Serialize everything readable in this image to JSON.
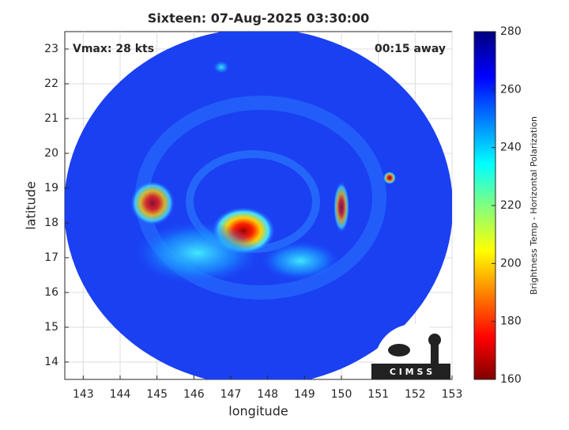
{
  "chart_data": {
    "type": "heatmap",
    "title": "Sixteen: 07-Aug-2025 03:30:00",
    "x_label": "longitude",
    "y_label": "latitude",
    "annotations": [
      "Vmax: 28 kts",
      "00:15 away"
    ],
    "logo": "C I M S S",
    "xlim": [
      142.5,
      153
    ],
    "xticks": [
      143,
      144,
      145,
      146,
      147,
      148,
      149,
      150,
      151,
      152,
      153
    ],
    "ylim": [
      13.5,
      23.5
    ],
    "yticks": [
      14,
      15,
      16,
      17,
      18,
      19,
      20,
      21,
      22,
      23
    ],
    "grid": true,
    "colorbar": {
      "label": "Brightness Temp - Horizontal Polarization",
      "lim": [
        160,
        280
      ],
      "ticks": [
        160,
        180,
        200,
        220,
        240,
        260,
        280
      ]
    }
  }
}
